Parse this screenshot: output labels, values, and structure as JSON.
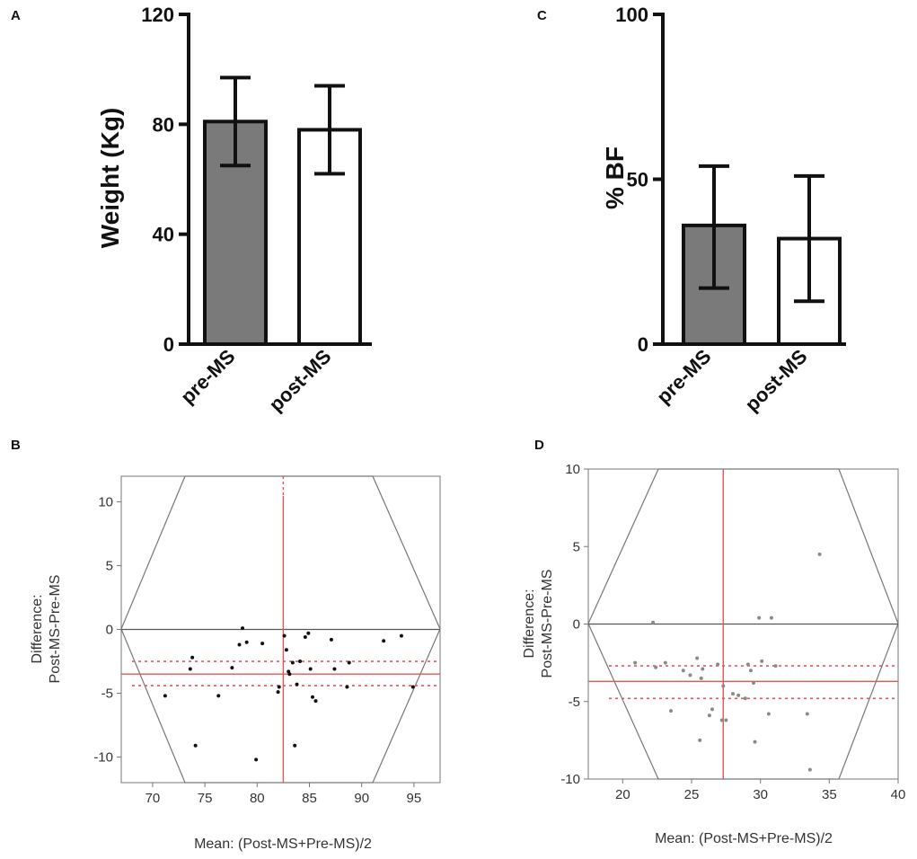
{
  "chart_data": [
    {
      "panel": "A",
      "type": "bar",
      "categories": [
        "pre-MS",
        "post-MS"
      ],
      "values": [
        81,
        78
      ],
      "error_high": [
        97,
        94
      ],
      "error_low": [
        65,
        62
      ],
      "bar_colors": [
        "#7a7a7a",
        "#ffffff"
      ],
      "ylabel": "Weight (Kg)",
      "ylim": [
        0,
        120
      ],
      "yticks": [
        0,
        40,
        80,
        120
      ]
    },
    {
      "panel": "C",
      "type": "bar",
      "categories": [
        "pre-MS",
        "post-MS"
      ],
      "values": [
        36,
        32
      ],
      "error_high": [
        54,
        51
      ],
      "error_low": [
        17,
        13
      ],
      "bar_colors": [
        "#7a7a7a",
        "#ffffff"
      ],
      "ylabel": "% BF",
      "ylim": [
        0,
        100
      ],
      "yticks": [
        0,
        50,
        100
      ]
    },
    {
      "panel": "B",
      "type": "scatter",
      "xlabel": "Mean: (Post-MS+Pre-MS)/2",
      "ylabel_line1": "Difference:",
      "ylabel_line2": "Post-MS-Pre-MS",
      "xlim": [
        67,
        97.5
      ],
      "ylim": [
        -12,
        12
      ],
      "xticks": [
        70,
        75,
        80,
        85,
        90,
        95
      ],
      "yticks": [
        -10,
        -5,
        0,
        5,
        10
      ],
      "mean_x": 82.5,
      "bias": -3.5,
      "ci_upper": -2.5,
      "ci_lower": -4.4,
      "point_color": "#111111",
      "points": [
        [
          71.2,
          -5.2
        ],
        [
          73.6,
          -3.1
        ],
        [
          73.8,
          -2.2
        ],
        [
          74.1,
          -9.1
        ],
        [
          76.3,
          -5.2
        ],
        [
          77.6,
          -3.0
        ],
        [
          78.3,
          -1.2
        ],
        [
          78.6,
          0.1
        ],
        [
          79.0,
          -1.0
        ],
        [
          79.9,
          -10.2
        ],
        [
          80.5,
          -1.1
        ],
        [
          82.0,
          -4.9
        ],
        [
          82.1,
          -4.5
        ],
        [
          82.6,
          -0.5
        ],
        [
          82.8,
          -1.6
        ],
        [
          83.1,
          -3.5
        ],
        [
          83.4,
          -2.6
        ],
        [
          83.6,
          -9.1
        ],
        [
          83.8,
          -4.3
        ],
        [
          84.1,
          -2.5
        ],
        [
          84.6,
          -0.6
        ],
        [
          84.9,
          -0.3
        ],
        [
          85.3,
          -5.3
        ],
        [
          85.6,
          -5.6
        ],
        [
          87.1,
          -0.8
        ],
        [
          87.4,
          -3.1
        ],
        [
          88.6,
          -4.5
        ],
        [
          88.8,
          -2.6
        ],
        [
          92.1,
          -0.9
        ],
        [
          93.8,
          -0.5
        ],
        [
          94.9,
          -4.5
        ],
        [
          85.1,
          -3.1
        ],
        [
          83.0,
          -3.3
        ]
      ]
    },
    {
      "panel": "D",
      "type": "scatter",
      "xlabel": "Mean: (Post-MS+Pre-MS)/2",
      "ylabel_line1": "Difference:",
      "ylabel_line2": "Post-MS-Pre-MS",
      "xlim": [
        17.5,
        40
      ],
      "ylim": [
        -10,
        10
      ],
      "xticks": [
        20,
        25,
        30,
        35,
        40
      ],
      "yticks": [
        -10,
        -5,
        0,
        5,
        10
      ],
      "mean_x": 27.3,
      "bias": -3.7,
      "ci_upper": -2.7,
      "ci_lower": -4.8,
      "point_color": "#8a8a8a",
      "points": [
        [
          20.9,
          -2.5
        ],
        [
          22.2,
          0.1
        ],
        [
          22.4,
          -2.8
        ],
        [
          23.1,
          -2.5
        ],
        [
          23.5,
          -5.6
        ],
        [
          24.4,
          -3.0
        ],
        [
          24.9,
          -3.3
        ],
        [
          25.4,
          -2.2
        ],
        [
          25.6,
          -7.5
        ],
        [
          25.7,
          -3.5
        ],
        [
          25.8,
          -2.9
        ],
        [
          26.3,
          -5.9
        ],
        [
          26.5,
          -5.5
        ],
        [
          26.9,
          -2.6
        ],
        [
          27.2,
          -6.2
        ],
        [
          27.3,
          -4.0
        ],
        [
          27.5,
          -6.2
        ],
        [
          28.0,
          -4.5
        ],
        [
          28.4,
          -4.6
        ],
        [
          28.9,
          -4.8
        ],
        [
          29.1,
          -2.6
        ],
        [
          29.3,
          -3.0
        ],
        [
          29.5,
          -3.8
        ],
        [
          29.6,
          -7.6
        ],
        [
          29.9,
          0.4
        ],
        [
          30.1,
          -2.4
        ],
        [
          30.6,
          -5.8
        ],
        [
          30.8,
          0.4
        ],
        [
          31.1,
          -2.7
        ],
        [
          33.4,
          -5.8
        ],
        [
          33.6,
          -9.4
        ],
        [
          34.3,
          4.5
        ]
      ]
    }
  ]
}
